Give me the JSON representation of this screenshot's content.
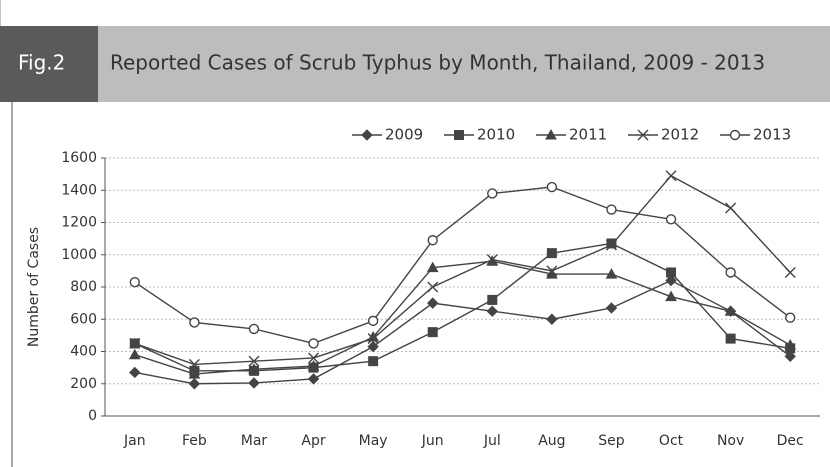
{
  "header": {
    "label": "Fig.2"
  },
  "chart_data": {
    "type": "line",
    "title": "Reported Cases of Scrub Typhus by Month, Thailand, 2009 - 2013",
    "y_label": "Number of Cases",
    "categories": [
      "Jan",
      "Feb",
      "Mar",
      "Apr",
      "May",
      "Jun",
      "Jul",
      "Aug",
      "Sep",
      "Oct",
      "Nov",
      "Dec"
    ],
    "ylim": [
      0,
      1600
    ],
    "yticks": [
      0,
      200,
      400,
      600,
      800,
      1000,
      1200,
      1400,
      1600
    ],
    "grid": true,
    "series": [
      {
        "name": "2009",
        "color": "#444444",
        "marker": "diamond",
        "values": [
          270,
          200,
          205,
          230,
          430,
          700,
          650,
          600,
          670,
          840,
          650,
          370
        ]
      },
      {
        "name": "2010",
        "color": "#444444",
        "marker": "square",
        "values": [
          450,
          280,
          280,
          300,
          340,
          520,
          720,
          1010,
          1070,
          890,
          480,
          420
        ]
      },
      {
        "name": "2011",
        "color": "#444444",
        "marker": "triangle",
        "values": [
          380,
          260,
          290,
          310,
          490,
          920,
          960,
          880,
          880,
          740,
          650,
          440
        ]
      },
      {
        "name": "2012",
        "color": "#444444",
        "marker": "cross",
        "values": [
          450,
          320,
          340,
          360,
          480,
          800,
          970,
          900,
          1060,
          1490,
          1290,
          890
        ]
      },
      {
        "name": "2013",
        "color": "#444444",
        "marker": "circle",
        "values": [
          830,
          580,
          540,
          450,
          590,
          1090,
          1380,
          1420,
          1280,
          1220,
          890,
          610
        ]
      }
    ]
  }
}
